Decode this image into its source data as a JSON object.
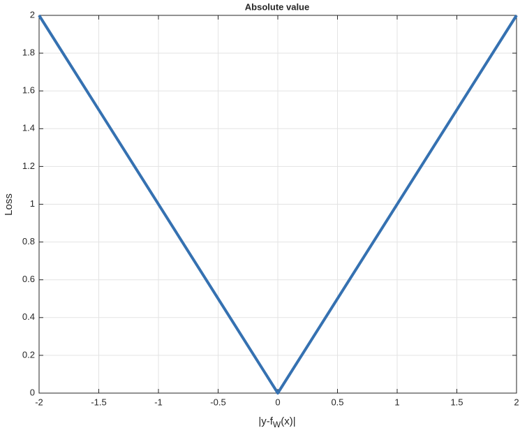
{
  "chart_data": {
    "type": "line",
    "title": "Absolute value",
    "xlabel": [
      "|y-f",
      "W",
      "(x)|"
    ],
    "ylabel": "Loss",
    "x": [
      -2,
      0,
      2
    ],
    "series": [
      {
        "color": "#3571b1",
        "values": [
          2,
          0,
          2
        ]
      }
    ],
    "xlim": [
      -2,
      2
    ],
    "xticks": [
      -2,
      -1.5,
      -1,
      -0.5,
      0,
      0.5,
      1,
      1.5,
      2
    ],
    "ylim": [
      0,
      2
    ],
    "yticks": [
      0,
      0.2,
      0.4,
      0.6,
      0.8,
      1,
      1.2,
      1.4,
      1.6,
      1.8,
      2
    ],
    "grid": true
  }
}
